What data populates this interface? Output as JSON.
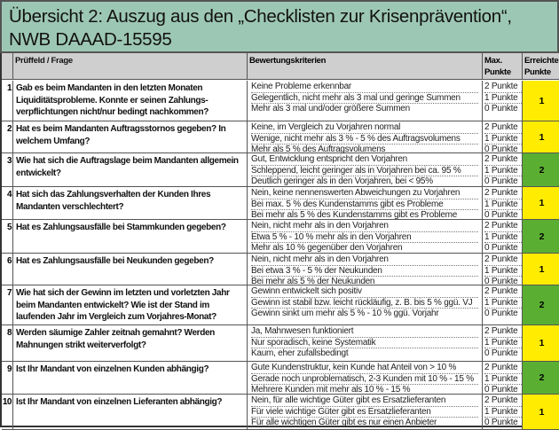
{
  "title": {
    "line1": "Übersicht 2: Auszug aus den „Checklisten zur Krisenprävention“,",
    "line2": "NWB DAAAD-15595"
  },
  "header": {
    "question": "Prüffeld / Frage",
    "criteria": "Bewertungskriterien",
    "max": "Max. Punkte",
    "achieved": "Erreichte Punkte"
  },
  "colors": {
    "title_bg": "#9dc7b5",
    "header_bg": "#cfcfcf",
    "yellow": "#ffec00",
    "green": "#5aaf32"
  },
  "rows": [
    {
      "no": "1",
      "question": "Gab es beim Mandanten in den letzten Monaten Liquiditätsprobleme. Konnte er seinen Zahlungs-verpflichtungen nicht/nur bedingt nachkommen?",
      "criteria": [
        "Keine Probleme erkennbar",
        "Gelegentlich, nicht mehr als 3 mal und geringe Summen",
        "Mehr als 3 mal und/oder größere Summen"
      ],
      "points": [
        "2 Punkte",
        "1 Punkte",
        "0 Punkte"
      ],
      "achieved": "1",
      "color": "yellow"
    },
    {
      "no": "2",
      "question": "Hat es beim Mandanten Auftragsstornos gegeben? In welchem Umfang?",
      "criteria": [
        "Keine, im Vergleich zu Vorjahren normal",
        "Wenige, nicht mehr als 3 % - 5 % des Auftragsvolumens",
        "Mehr als 5 % des Auftragsvolumens"
      ],
      "points": [
        "2 Punkte",
        "1 Punkte",
        "0 Punkte"
      ],
      "achieved": "1",
      "color": "yellow"
    },
    {
      "no": "3",
      "question": "Wie hat sich die Auftragslage beim Mandanten allgemein entwickelt?",
      "criteria": [
        "Gut, Entwicklung entspricht den Vorjahren",
        "Schleppend, leicht geringer als in Vorjahren bei ca. 95 %",
        "Deutlich geringer als in den Vorjahren, bei < 95%"
      ],
      "points": [
        "2 Punkte",
        "1 Punkte",
        "0 Punkte"
      ],
      "achieved": "2",
      "color": "green"
    },
    {
      "no": "4",
      "question": "Hat sich das Zahlungsverhalten der Kunden Ihres Mandanten verschlechtert?",
      "criteria": [
        "Nein, keine nennenswerten Abweichungen zu Vorjahren",
        "Bei max. 5 % des Kundenstamms gibt es Probleme",
        "Bei mehr als 5 % des Kundenstamms gibt es Probleme"
      ],
      "points": [
        "2 Punkte",
        "1 Punkte",
        "0 Punkte"
      ],
      "achieved": "1",
      "color": "yellow"
    },
    {
      "no": "5",
      "question": "Hat es Zahlungsausfälle bei Stammkunden gegeben?",
      "criteria": [
        "Nein, nicht mehr als in den Vorjahren",
        "Etwa 5 % - 10 % mehr als in den Vorjahren",
        "Mehr als 10 % gegenüber den Vorjahren"
      ],
      "points": [
        "2 Punkte",
        "1 Punkte",
        "0 Punkte"
      ],
      "achieved": "2",
      "color": "green"
    },
    {
      "no": "6",
      "question": "Hat es Zahlungsausfälle bei Neukunden gegeben?",
      "criteria": [
        "Nein, nicht mehr als in den Vorjahren",
        "Bei etwa 3 % - 5 % der Neukunden",
        "Bei mehr als 5 % der Neukunden"
      ],
      "points": [
        "2 Punkte",
        "1 Punkte",
        "0 Punkte"
      ],
      "achieved": "1",
      "color": "yellow"
    },
    {
      "no": "7",
      "question": "Wie hat sich der Gewinn im letzten und vorletzten Jahr beim Mandanten entwickelt? Wie ist der Stand im laufenden Jahr im Vergleich zum Vorjahres-Monat?",
      "criteria": [
        "Gewinn entwickelt sich positiv",
        "Gewinn ist stabil bzw. leicht rückläufig, z. B. bis 5 % ggü. VJ",
        "Gewinn sinkt um mehr als 5 % - 10 % ggü. Vorjahr"
      ],
      "points": [
        "2 Punkte",
        "1 Punkte",
        "0 Punkte"
      ],
      "achieved": "2",
      "color": "green"
    },
    {
      "no": "8",
      "question": "Werden säumige Zahler zeitnah gemahnt? Werden Mahnungen strikt weiterverfolgt?",
      "criteria": [
        "Ja, Mahnwesen funktioniert",
        "Nur sporadisch, keine Systematik",
        "Kaum, eher zufallsbedingt"
      ],
      "points": [
        "2 Punkte",
        "1 Punkte",
        "0 Punkte"
      ],
      "achieved": "1",
      "color": "yellow"
    },
    {
      "no": "9",
      "question": "Ist Ihr Mandant von einzelnen Kunden abhängig?",
      "criteria": [
        "Gute Kundenstruktur, kein Kunde hat Anteil von > 10 %",
        "Gerade noch unproblematisch, 2-3 Kunden mit 10 % - 15 %",
        "Mehrere Kunden mit mehr als 10 % - 15 %"
      ],
      "points": [
        "2 Punkte",
        "1 Punkte",
        "0 Punkte"
      ],
      "achieved": "2",
      "color": "green"
    },
    {
      "no": "10",
      "question": "Ist Ihr Mandant von einzelnen  Lieferanten abhängig?",
      "criteria": [
        "Nein, für alle wichtige Güter gibt es Ersatzlieferanten",
        "Für viele wichtige Güter gibt es Ersatzlieferanten",
        "Für alle wichtigen Güter gibt es nur einen Anbieter"
      ],
      "points": [
        "2 Punkte",
        "1 Punkte",
        "0 Punkte"
      ],
      "achieved": "1",
      "color": "yellow"
    }
  ]
}
